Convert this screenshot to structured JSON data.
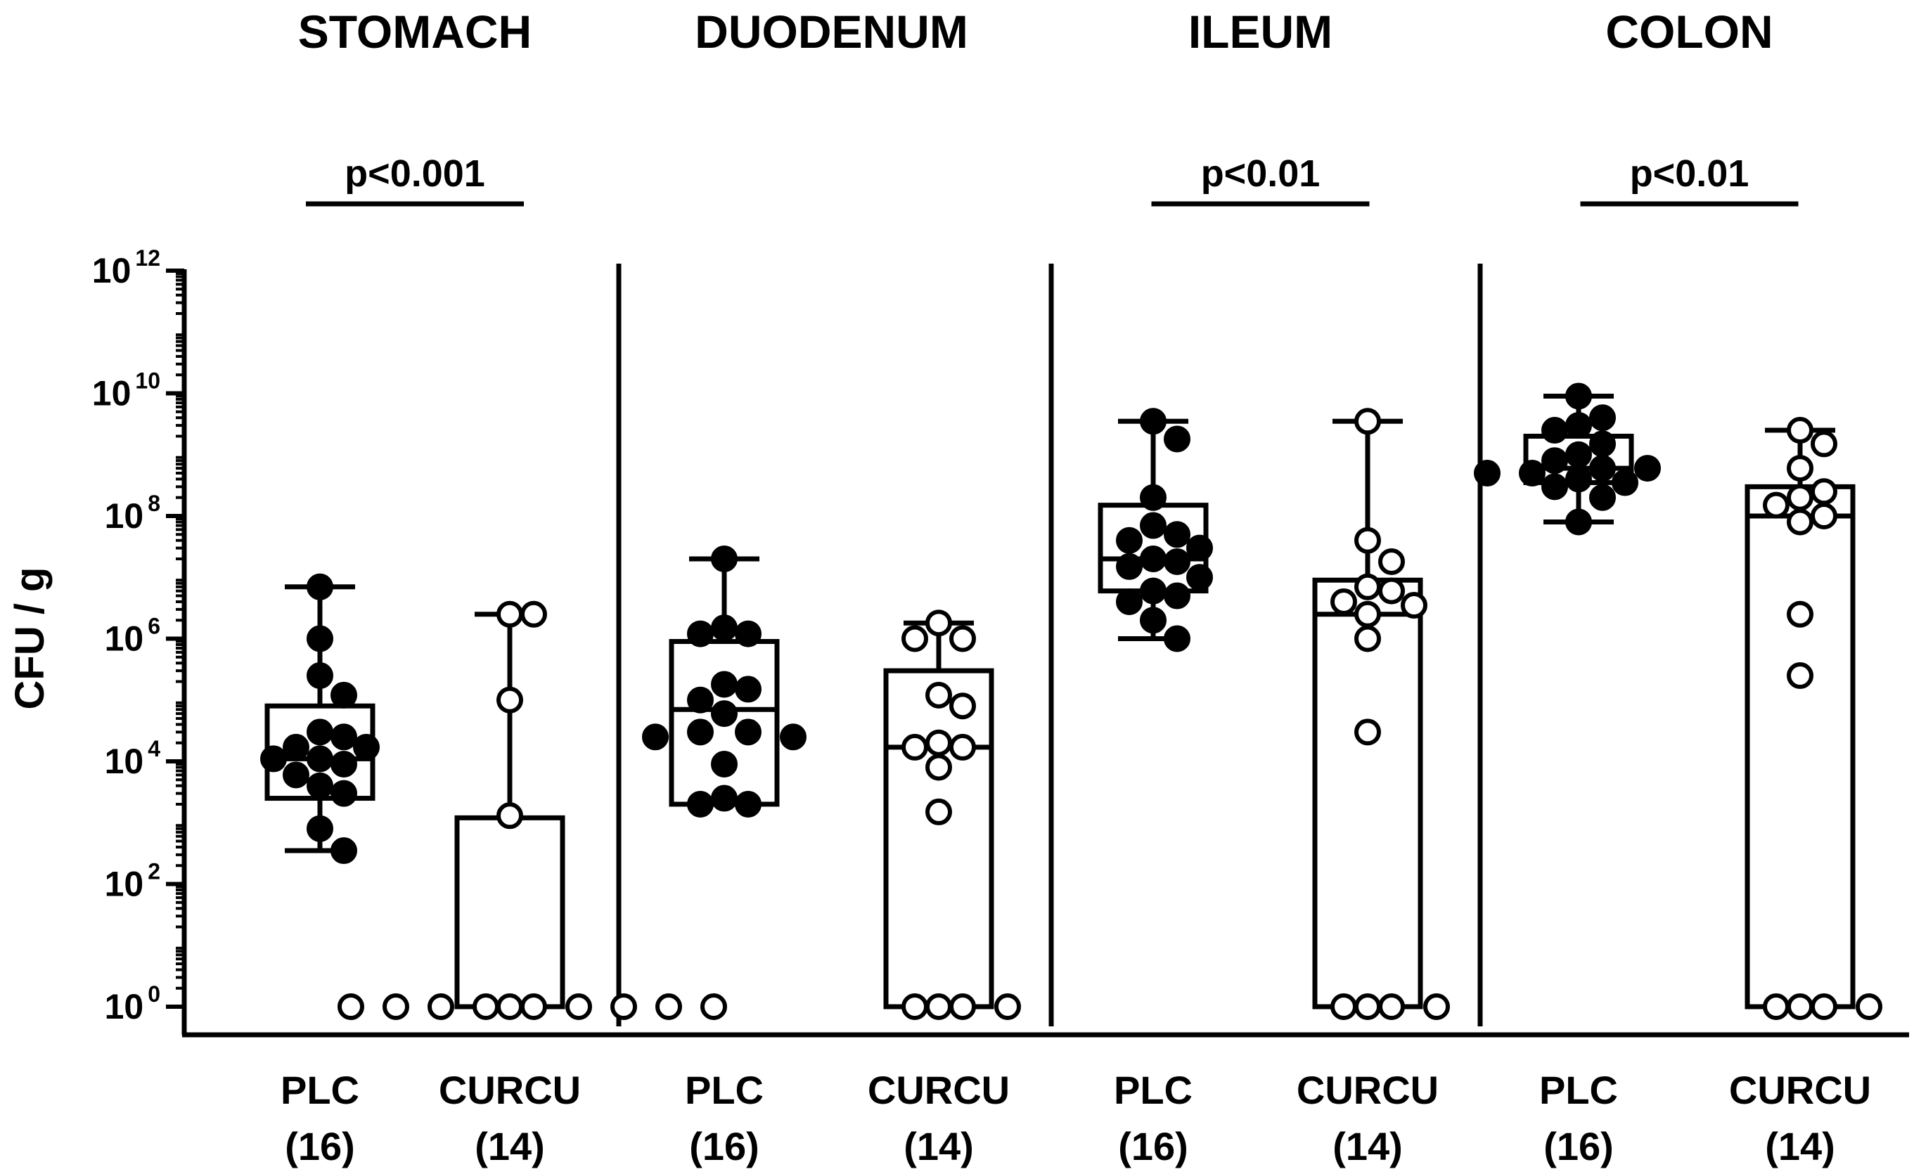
{
  "chart_data": {
    "type": "box",
    "ylabel": "CFU / g",
    "yscale": "log10",
    "ylim": [
      1,
      1000000000000
    ],
    "yticks": [
      {
        "base": "10",
        "exp": "0",
        "value": 1
      },
      {
        "base": "10",
        "exp": "2",
        "value": 100
      },
      {
        "base": "10",
        "exp": "4",
        "value": 10000
      },
      {
        "base": "10",
        "exp": "6",
        "value": 1000000
      },
      {
        "base": "10",
        "exp": "8",
        "value": 100000000
      },
      {
        "base": "10",
        "exp": "10",
        "value": 10000000000
      },
      {
        "base": "10",
        "exp": "12",
        "value": 1000000000000
      }
    ],
    "grid": false,
    "sections": [
      {
        "title": "STOMACH",
        "pvalue": "p<0.001",
        "groups": [
          {
            "label": "PLC",
            "n": "(16)",
            "fill": "#000000",
            "box": {
              "min": 350,
              "q1": 2500,
              "median": 11000,
              "q3": 80000,
              "max": 7000000
            },
            "points": [
              7000000,
              1000000,
              250000,
              120000,
              30000,
              25000,
              17000,
              17000,
              11000,
              11000,
              9000,
              6000,
              4000,
              3000,
              800,
              350
            ]
          },
          {
            "label": "CURCU",
            "n": "(14)",
            "fill": "#ffffff",
            "box": {
              "min": 1,
              "q1": 1,
              "median": 1,
              "q3": 1200,
              "max": 2500000
            },
            "points": [
              2500000,
              2500000,
              100000,
              1300,
              1,
              1,
              1,
              1,
              1,
              1,
              1,
              1,
              1,
              1
            ]
          }
        ]
      },
      {
        "title": "DUODENUM",
        "pvalue": "",
        "groups": [
          {
            "label": "PLC",
            "n": "(16)",
            "fill": "#000000",
            "box": {
              "min": 2000,
              "q1": 2000,
              "median": 70000,
              "q3": 900000,
              "max": 20000000
            },
            "points": [
              20000000,
              1500000,
              1200000,
              1200000,
              180000,
              150000,
              100000,
              60000,
              30000,
              30000,
              25000,
              25000,
              9000,
              2500,
              2000,
              2000
            ]
          },
          {
            "label": "CURCU",
            "n": "(14)",
            "fill": "#ffffff",
            "box": {
              "min": 1,
              "q1": 1,
              "median": 17000,
              "q3": 300000,
              "max": 1800000
            },
            "points": [
              1800000,
              1000000,
              1000000,
              120000,
              80000,
              20000,
              17000,
              17000,
              8000,
              1500,
              1,
              1,
              1,
              1
            ]
          }
        ]
      },
      {
        "title": "ILEUM",
        "pvalue": "p<0.01",
        "groups": [
          {
            "label": "PLC",
            "n": "(16)",
            "fill": "#000000",
            "box": {
              "min": 1000000,
              "q1": 6000000,
              "median": 20000000,
              "q3": 150000000,
              "max": 3500000000
            },
            "points": [
              3500000000,
              1800000000,
              200000000,
              70000000,
              50000000,
              40000000,
              30000000,
              20000000,
              18000000,
              15000000,
              10000000,
              6000000,
              5000000,
              4000000,
              2000000,
              1000000
            ]
          },
          {
            "label": "CURCU",
            "n": "(14)",
            "fill": "#ffffff",
            "box": {
              "min": 1,
              "q1": 1,
              "median": 2500000,
              "q3": 9000000,
              "max": 3500000000
            },
            "points": [
              3500000000,
              40000000,
              18000000,
              7000000,
              6000000,
              4000000,
              3500000,
              2500000,
              1000000,
              30000,
              1,
              1,
              1,
              1
            ]
          }
        ]
      },
      {
        "title": "COLON",
        "pvalue": "p<0.01",
        "groups": [
          {
            "label": "PLC",
            "n": "(16)",
            "fill": "#000000",
            "box": {
              "min": 80000000,
              "q1": 350000000,
              "median": 600000000,
              "q3": 2000000000,
              "max": 9000000000
            },
            "points": [
              9000000000,
              4000000000,
              3000000000,
              2500000000,
              1500000000,
              1000000000,
              800000000,
              600000000,
              600000000,
              500000000,
              500000000,
              400000000,
              350000000,
              300000000,
              200000000,
              80000000
            ]
          },
          {
            "label": "CURCU",
            "n": "(14)",
            "fill": "#ffffff",
            "box": {
              "min": 1,
              "q1": 1,
              "median": 100000000,
              "q3": 300000000,
              "max": 2500000000
            },
            "points": [
              2500000000,
              1500000000,
              600000000,
              250000000,
              200000000,
              150000000,
              100000000,
              80000000,
              2500000,
              250000,
              1,
              1,
              1,
              1
            ]
          }
        ]
      }
    ]
  }
}
